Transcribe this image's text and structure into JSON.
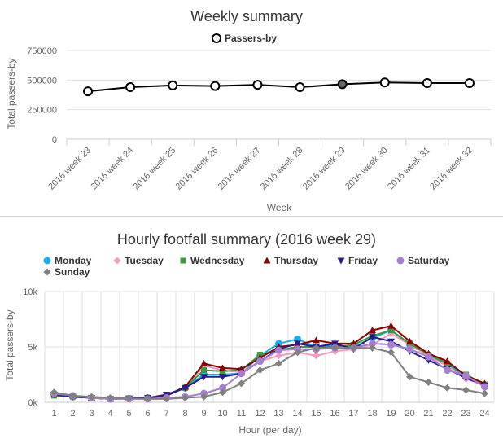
{
  "colors": {
    "monday": "#1aadeb",
    "tuesday": "#f49ac1",
    "wednesday": "#3c9a3c",
    "thursday": "#8b0000",
    "friday": "#2a1a8a",
    "saturday": "#a77fd2",
    "sunday": "#808080",
    "passers": "#000000",
    "grid": "#e0e0e0"
  },
  "chart_data": [
    {
      "type": "line",
      "title": "Weekly summary",
      "xlabel": "Week",
      "ylabel": "Total passers-by",
      "categories": [
        "2016 week 23",
        "2016 week 24",
        "2016 week 25",
        "2016 week 26",
        "2016 week 27",
        "2016 week 28",
        "2016 week 29",
        "2016 week 30",
        "2016 week 31",
        "2016 week 32"
      ],
      "yticks": [
        "0",
        "250000",
        "500000",
        "750000"
      ],
      "ylim": [
        0,
        750000
      ],
      "legend": "top-center",
      "grid": true,
      "highlighted_category": "2016 week 29",
      "series": [
        {
          "name": "Passers-by",
          "values": [
            405000,
            440000,
            455000,
            450000,
            460000,
            440000,
            465000,
            480000,
            475000,
            475000
          ]
        }
      ]
    },
    {
      "type": "line",
      "title": "Hourly footfall summary (2016 week 29)",
      "xlabel": "Hour (per day)",
      "ylabel": "Total passers-by",
      "categories": [
        "1",
        "2",
        "3",
        "4",
        "5",
        "6",
        "7",
        "8",
        "9",
        "10",
        "11",
        "12",
        "13",
        "14",
        "15",
        "16",
        "17",
        "18",
        "19",
        "20",
        "21",
        "22",
        "23",
        "24"
      ],
      "yticks": [
        "0k",
        "5k",
        "10k"
      ],
      "ylim": [
        0,
        10000
      ],
      "legend": "top",
      "grid": true,
      "series": [
        {
          "name": "Monday",
          "values": [
            700,
            500,
            400,
            300,
            350,
            400,
            600,
            1300,
            2500,
            2500,
            2600,
            4200,
            5300,
            5700,
            5000,
            5200,
            5000,
            5800,
            6500,
            5200,
            4200,
            3400,
            2300,
            1500
          ]
        },
        {
          "name": "Tuesday",
          "values": [
            700,
            500,
            400,
            300,
            350,
            400,
            600,
            1300,
            3300,
            2900,
            2700,
            3700,
            4200,
            4500,
            4200,
            4600,
            4800,
            5200,
            6200,
            5200,
            4100,
            3300,
            2100,
            1600
          ]
        },
        {
          "name": "Wednesday",
          "values": [
            600,
            500,
            400,
            300,
            350,
            400,
            600,
            1300,
            2900,
            2800,
            2900,
            4300,
            4700,
            5000,
            5000,
            5000,
            5200,
            6000,
            6500,
            5300,
            4300,
            3500,
            2500,
            1600
          ]
        },
        {
          "name": "Thursday",
          "values": [
            700,
            600,
            400,
            300,
            350,
            400,
            600,
            1400,
            3500,
            3100,
            3000,
            4000,
            5000,
            5200,
            5600,
            5300,
            5300,
            6500,
            6900,
            5500,
            4400,
            3700,
            2400,
            1700
          ]
        },
        {
          "name": "Friday",
          "values": [
            700,
            500,
            400,
            300,
            350,
            400,
            700,
            1300,
            2300,
            2300,
            2600,
            3700,
            4800,
            5300,
            5000,
            5300,
            4800,
            5900,
            5500,
            4600,
            3800,
            3000,
            2200,
            1500
          ]
        },
        {
          "name": "Saturday",
          "values": [
            800,
            600,
            400,
            300,
            300,
            300,
            400,
            500,
            800,
            1300,
            2600,
            3700,
            4700,
            4800,
            4800,
            4900,
            4900,
            5300,
            5200,
            4800,
            4100,
            2900,
            2400,
            1400
          ]
        },
        {
          "name": "Sunday",
          "values": [
            900,
            600,
            500,
            400,
            350,
            300,
            300,
            400,
            500,
            900,
            1700,
            2900,
            3500,
            4500,
            4900,
            4900,
            4900,
            4900,
            4500,
            2300,
            1800,
            1300,
            1100,
            800
          ]
        }
      ]
    }
  ]
}
